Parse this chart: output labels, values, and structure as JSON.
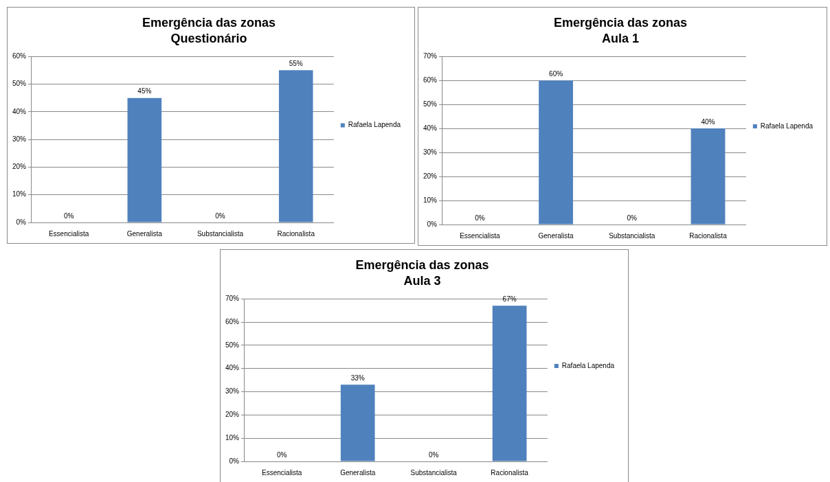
{
  "chart_data": [
    {
      "type": "bar",
      "title": "Emergência das zonas",
      "subtitle": "Questionário",
      "categories": [
        "Essencialista",
        "Generalista",
        "Substancialista",
        "Racionalista"
      ],
      "series": [
        {
          "name": "Rafaela Lapenda",
          "color": "#4f81bd",
          "values": [
            0,
            45,
            0,
            55
          ],
          "value_labels": [
            "0%",
            "45%",
            "0%",
            "55%"
          ]
        }
      ],
      "ylim": [
        0,
        60
      ],
      "yticks": [
        {
          "value": 0,
          "label": "0%"
        },
        {
          "value": 10,
          "label": "10%"
        },
        {
          "value": 20,
          "label": "20%"
        },
        {
          "value": 30,
          "label": "30%"
        },
        {
          "value": 40,
          "label": "40%"
        },
        {
          "value": 50,
          "label": "50%"
        },
        {
          "value": 60,
          "label": "60%"
        }
      ],
      "grid": "y",
      "legend": "right"
    },
    {
      "type": "bar",
      "title": "Emergência das zonas",
      "subtitle": "Aula 1",
      "categories": [
        "Essencialista",
        "Generalista",
        "Substancialista",
        "Racionalista"
      ],
      "series": [
        {
          "name": "Rafaela Lapenda",
          "color": "#4f81bd",
          "values": [
            0,
            60,
            0,
            40
          ],
          "value_labels": [
            "0%",
            "60%",
            "0%",
            "40%"
          ]
        }
      ],
      "ylim": [
        0,
        70
      ],
      "yticks": [
        {
          "value": 0,
          "label": "0%"
        },
        {
          "value": 10,
          "label": "10%"
        },
        {
          "value": 20,
          "label": "20%"
        },
        {
          "value": 30,
          "label": "30%"
        },
        {
          "value": 40,
          "label": "40%"
        },
        {
          "value": 50,
          "label": "50%"
        },
        {
          "value": 60,
          "label": "60%"
        },
        {
          "value": 70,
          "label": "70%"
        }
      ],
      "grid": "y",
      "legend": "right"
    },
    {
      "type": "bar",
      "title": "Emergência das zonas",
      "subtitle": "Aula 3",
      "categories": [
        "Essencialista",
        "Generalista",
        "Substancialista",
        "Racionalista"
      ],
      "series": [
        {
          "name": "Rafaela Lapenda",
          "color": "#4f81bd",
          "values": [
            0,
            33,
            0,
            67
          ],
          "value_labels": [
            "0%",
            "33%",
            "0%",
            "67%"
          ]
        }
      ],
      "ylim": [
        0,
        70
      ],
      "yticks": [
        {
          "value": 0,
          "label": "0%"
        },
        {
          "value": 10,
          "label": "10%"
        },
        {
          "value": 20,
          "label": "20%"
        },
        {
          "value": 30,
          "label": "30%"
        },
        {
          "value": 40,
          "label": "40%"
        },
        {
          "value": 50,
          "label": "50%"
        },
        {
          "value": 60,
          "label": "60%"
        },
        {
          "value": 70,
          "label": "70%"
        }
      ],
      "grid": "y",
      "legend": "right"
    }
  ]
}
